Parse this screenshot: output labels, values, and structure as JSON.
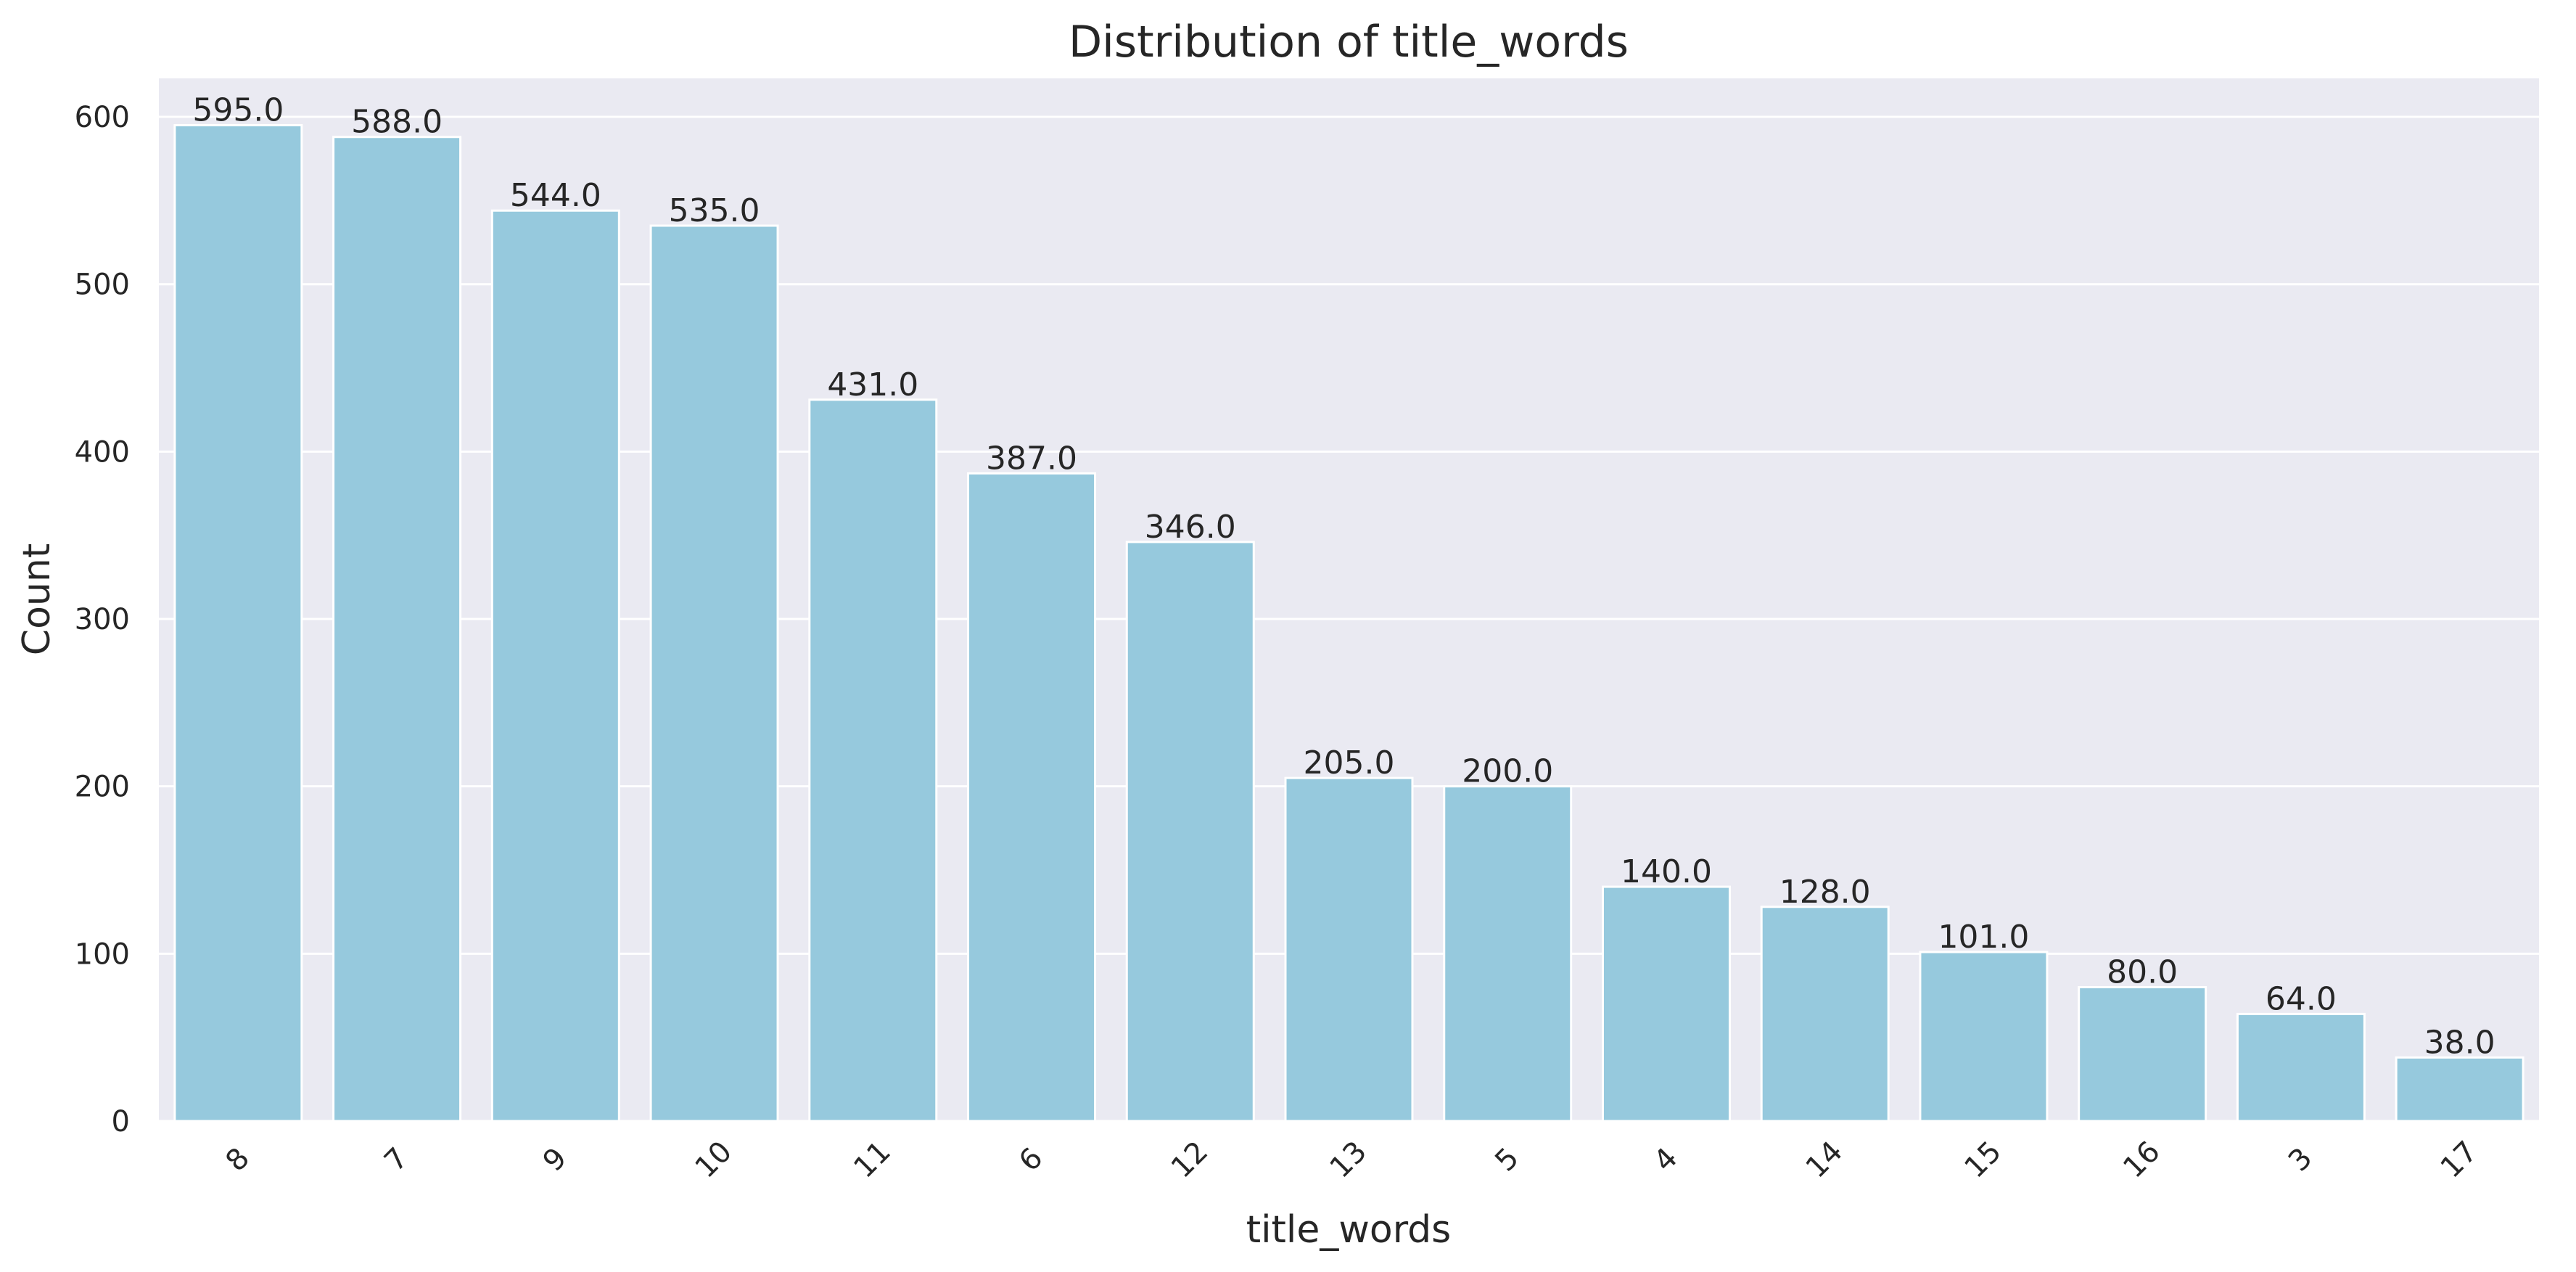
{
  "chart_data": {
    "type": "bar",
    "title": "Distribution of title_words",
    "xlabel": "title_words",
    "ylabel": "Count",
    "categories": [
      "8",
      "7",
      "9",
      "10",
      "11",
      "6",
      "12",
      "13",
      "5",
      "4",
      "14",
      "15",
      "16",
      "3",
      "17"
    ],
    "values": [
      595,
      588,
      544,
      535,
      431,
      387,
      346,
      205,
      200,
      140,
      128,
      101,
      80,
      64,
      38
    ],
    "value_labels": [
      "595.0",
      "588.0",
      "544.0",
      "535.0",
      "431.0",
      "387.0",
      "346.0",
      "205.0",
      "200.0",
      "140.0",
      "128.0",
      "101.0",
      "80.0",
      "64.0",
      "38.0"
    ],
    "ylim": [
      0,
      623
    ],
    "yticks": [
      0,
      100,
      200,
      300,
      400,
      500,
      600
    ],
    "grid": true,
    "legend": "none",
    "colors": {
      "bar": "#96C9DD",
      "plot_background": "#EAEAF2",
      "grid": "#FFFFFF",
      "text": "#262626"
    }
  }
}
